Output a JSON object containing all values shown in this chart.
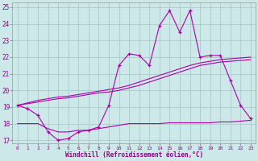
{
  "xlabel": "Windchill (Refroidissement éolien,°C)",
  "background_color": "#cde8e8",
  "grid_color": "#b0cece",
  "line_color": "#aa00aa",
  "x": [
    0,
    1,
    2,
    3,
    4,
    5,
    6,
    7,
    8,
    9,
    10,
    11,
    12,
    13,
    14,
    15,
    16,
    17,
    18,
    19,
    20,
    21,
    22,
    23
  ],
  "line1": [
    19.1,
    18.9,
    18.5,
    17.5,
    17.0,
    17.1,
    17.5,
    17.6,
    17.8,
    19.1,
    21.5,
    22.2,
    22.1,
    21.5,
    23.9,
    24.8,
    23.5,
    24.8,
    22.0,
    22.1,
    22.1,
    20.6,
    19.1,
    18.3
  ],
  "line2": [
    19.1,
    19.2,
    19.3,
    19.4,
    19.5,
    19.55,
    19.65,
    19.75,
    19.85,
    19.9,
    20.0,
    20.15,
    20.3,
    20.5,
    20.7,
    20.9,
    21.1,
    21.3,
    21.5,
    21.6,
    21.7,
    21.75,
    21.8,
    21.85
  ],
  "line3": [
    19.1,
    19.25,
    19.4,
    19.5,
    19.6,
    19.65,
    19.75,
    19.85,
    19.95,
    20.05,
    20.15,
    20.3,
    20.5,
    20.7,
    20.9,
    21.1,
    21.3,
    21.5,
    21.65,
    21.75,
    21.85,
    21.9,
    21.95,
    22.0
  ],
  "line4": [
    18.0,
    18.0,
    18.0,
    17.7,
    17.5,
    17.5,
    17.6,
    17.6,
    17.7,
    17.8,
    17.9,
    18.0,
    18.0,
    18.0,
    18.0,
    18.05,
    18.05,
    18.05,
    18.05,
    18.05,
    18.1,
    18.1,
    18.15,
    18.2
  ],
  "ylim": [
    16.8,
    25.3
  ],
  "yticks": [
    17,
    18,
    19,
    20,
    21,
    22,
    23,
    24,
    25
  ]
}
